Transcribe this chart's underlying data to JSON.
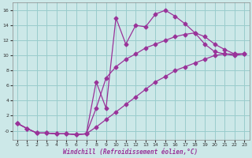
{
  "bg_color": "#cce8e8",
  "grid_color": "#99cccc",
  "line_color": "#993399",
  "xlabel": "Windchill (Refroidissement éolien,°C)",
  "xlim": [
    -0.5,
    23.5
  ],
  "ylim": [
    -1.2,
    17
  ],
  "yticks": [
    0,
    2,
    4,
    6,
    8,
    10,
    12,
    14,
    16
  ],
  "ytick_labels": [
    "-0",
    "2",
    "4",
    "6",
    "8",
    "10",
    "12",
    "14",
    "16"
  ],
  "xticks": [
    0,
    1,
    2,
    3,
    4,
    5,
    6,
    7,
    8,
    9,
    10,
    11,
    12,
    13,
    14,
    15,
    16,
    17,
    18,
    19,
    20,
    21,
    22,
    23
  ],
  "line1_x": [
    0,
    1,
    2,
    3,
    4,
    5,
    6,
    7,
    8,
    9,
    10,
    11,
    12,
    13,
    14,
    15,
    16,
    17,
    18,
    19,
    20,
    21,
    22,
    23
  ],
  "line1_y": [
    1.0,
    0.3,
    -0.3,
    -0.3,
    -0.4,
    -0.4,
    -0.5,
    -0.4,
    6.5,
    3.0,
    15.0,
    11.5,
    14.0,
    13.8,
    15.5,
    16.0,
    15.2,
    14.2,
    13.0,
    11.5,
    10.5,
    10.2,
    10.0,
    10.2
  ],
  "line2_x": [
    0,
    1,
    2,
    3,
    4,
    5,
    6,
    7,
    8,
    9,
    10,
    11,
    12,
    13,
    14,
    15,
    16,
    17,
    18,
    19,
    20,
    21,
    22,
    23
  ],
  "line2_y": [
    1.0,
    0.3,
    -0.3,
    -0.3,
    -0.4,
    -0.4,
    -0.5,
    -0.4,
    3.0,
    7.0,
    8.5,
    9.5,
    10.2,
    11.0,
    11.5,
    12.0,
    12.5,
    12.8,
    13.0,
    12.5,
    11.5,
    10.8,
    10.2,
    10.2
  ],
  "line3_x": [
    0,
    1,
    2,
    3,
    4,
    5,
    6,
    7,
    8,
    9,
    10,
    11,
    12,
    13,
    14,
    15,
    16,
    17,
    18,
    19,
    20,
    21,
    22,
    23
  ],
  "line3_y": [
    1.0,
    0.3,
    -0.3,
    -0.3,
    -0.4,
    -0.4,
    -0.5,
    -0.4,
    0.5,
    1.5,
    2.5,
    3.5,
    4.5,
    5.5,
    6.5,
    7.2,
    8.0,
    8.5,
    9.0,
    9.5,
    10.0,
    10.2,
    10.2,
    10.2
  ],
  "marker": "D",
  "markersize": 2.5,
  "linewidth": 0.9
}
